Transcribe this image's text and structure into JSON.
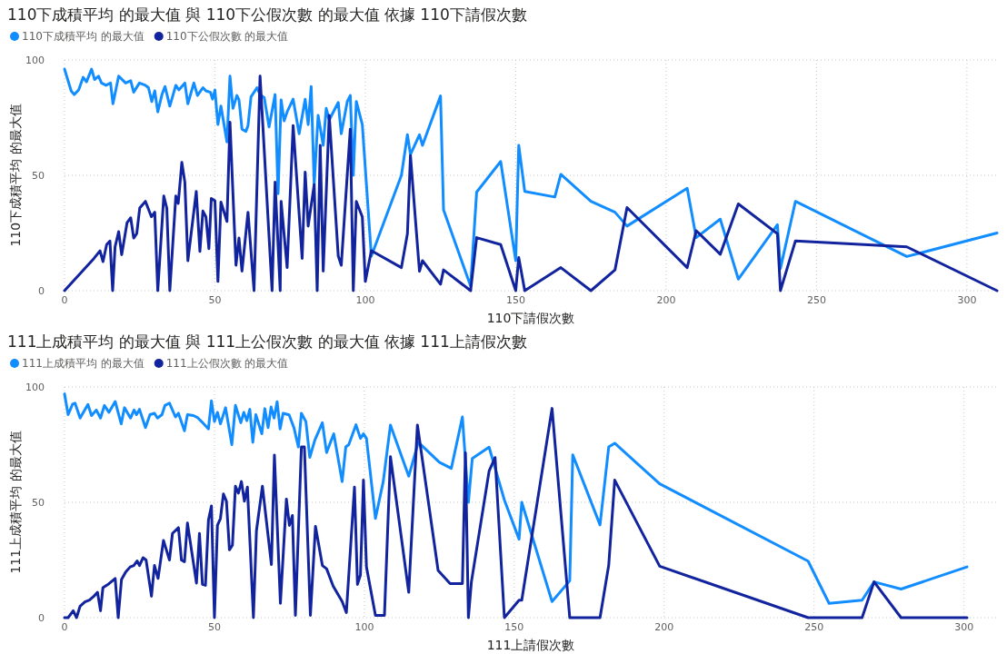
{
  "chart_data": [
    {
      "type": "line",
      "title": "110下成積平均 的最大值 與 110下公假次數 的最大值 依據 110下請假次數",
      "xlabel": "110下請假次數",
      "ylabel": "110下成積平均 的最大值",
      "legend": "top left",
      "grid": true,
      "xlim": [
        0,
        310
      ],
      "xticks": [
        0,
        50,
        100,
        150,
        200,
        250,
        300
      ],
      "ylim": [
        0,
        100
      ],
      "yticks": [
        0,
        50,
        100
      ],
      "series": [
        {
          "name": "110下成積平均 的最大值",
          "color": "#118dff",
          "x": [
            0,
            2.2,
            3.2,
            4.7,
            6.2,
            7.3,
            9,
            10,
            11.3,
            12.3,
            13.8,
            15.3,
            16.1,
            18,
            20.3,
            22,
            23,
            24.9,
            26.9,
            27.9,
            29,
            30,
            31,
            32.4,
            33.4,
            35,
            37,
            38,
            40,
            41,
            43,
            44.2,
            46,
            47,
            48.5,
            49.2,
            50,
            51,
            52,
            54,
            55,
            56,
            57.3,
            58,
            59,
            60.3,
            61,
            62,
            64,
            65,
            66.4,
            68,
            70,
            71,
            72,
            73,
            74,
            76,
            78,
            80,
            81,
            82,
            83,
            84.3,
            86,
            87,
            88,
            91,
            92,
            94,
            95,
            96,
            97,
            99,
            102,
            112,
            114,
            115,
            118,
            119,
            125,
            126,
            135,
            137,
            145,
            150,
            151,
            153,
            163,
            165,
            175,
            183,
            187,
            207,
            210,
            218,
            224,
            237,
            238,
            243,
            280,
            310
          ],
          "values": [
            96,
            86.6,
            85,
            87,
            92.5,
            90.5,
            96,
            91.5,
            93,
            90,
            89,
            90,
            81,
            93,
            90,
            91,
            86,
            90,
            89,
            88,
            82,
            86.6,
            77.5,
            85,
            88.5,
            80,
            89,
            87,
            90,
            81,
            90,
            84.6,
            88,
            86.6,
            86,
            83,
            87,
            72,
            80,
            64.5,
            93,
            79,
            84.6,
            82.7,
            70,
            69,
            71.6,
            84,
            88,
            85,
            83.7,
            71,
            85,
            42,
            82.7,
            73.6,
            77.5,
            83,
            68,
            83,
            72,
            88.5,
            46,
            76,
            63,
            79,
            74,
            81.6,
            68,
            82,
            84.6,
            50,
            82,
            72,
            15,
            50,
            67.6,
            59,
            67.6,
            63,
            84.4,
            35,
            2,
            42.7,
            56,
            13,
            63,
            43,
            40.6,
            50.4,
            38.7,
            34,
            28,
            44.4,
            23,
            31,
            5,
            28.6,
            9.6,
            38.7,
            14.8,
            25
          ]
        },
        {
          "name": "110下公假次數 的最大值",
          "color": "#12239e",
          "x": [
            0,
            9.8,
            11.8,
            12.8,
            14,
            15.1,
            16,
            16.8,
            18,
            19,
            20.8,
            22,
            23,
            24,
            25,
            26.9,
            28.9,
            30,
            31,
            33,
            34,
            35,
            37,
            37.8,
            39,
            40,
            41,
            43.8,
            45,
            46,
            47,
            48,
            48.8,
            50,
            51,
            52,
            54,
            55,
            57,
            58,
            59,
            61,
            63,
            65,
            66,
            69,
            70,
            71.7,
            72,
            74,
            76,
            79,
            80,
            81,
            83,
            84,
            85,
            86,
            88,
            91,
            92,
            95,
            96,
            97,
            99,
            100,
            102,
            112,
            114,
            115,
            118,
            119,
            125,
            126,
            135,
            137,
            145,
            150,
            151,
            153,
            165,
            175,
            183,
            187,
            207,
            210,
            218,
            224,
            237,
            238,
            243,
            280,
            310
          ],
          "values": [
            0,
            14,
            17.3,
            12.6,
            20,
            21.5,
            0,
            19,
            25.6,
            15.6,
            29.5,
            31.6,
            22.8,
            24.7,
            35.8,
            38.7,
            32,
            34,
            0,
            41,
            35.8,
            0,
            41,
            37.8,
            55.6,
            47,
            13,
            43,
            17,
            34.5,
            32,
            18.2,
            40,
            39,
            4,
            38.4,
            30,
            73,
            11,
            22.8,
            8.5,
            34,
            0,
            93,
            70,
            0,
            47,
            0,
            38.7,
            10,
            71.6,
            14,
            51.4,
            28,
            46,
            0,
            63,
            8.5,
            76,
            15,
            11,
            70,
            0,
            38.7,
            32,
            4,
            17.3,
            10,
            24.7,
            58.6,
            8.4,
            13,
            2.8,
            9,
            0,
            23,
            20,
            0,
            14.4,
            0,
            10,
            0,
            9,
            36,
            10,
            26,
            15.8,
            37.6,
            24.7,
            0,
            21.6,
            19,
            0
          ]
        }
      ]
    },
    {
      "type": "line",
      "title": "111上成積平均 的最大值 與 111上公假次數 的最大值 依據 111上請假次數",
      "xlabel": "111上請假次數",
      "ylabel": "111上成積平均 的最大值",
      "legend": "top left",
      "grid": true,
      "xlim": [
        0,
        311
      ],
      "xticks": [
        0,
        50,
        100,
        150,
        200,
        250,
        300
      ],
      "ylim": [
        0,
        100
      ],
      "yticks": [
        0,
        50,
        100
      ],
      "series": [
        {
          "name": "111上成積平均 的最大值",
          "color": "#118dff",
          "x": [
            0,
            1.2,
            2.7,
            3.5,
            5.2,
            7.8,
            9,
            10.6,
            12,
            13.3,
            14.8,
            16.9,
            18.9,
            20,
            22,
            23.2,
            24,
            25,
            27,
            28.5,
            30,
            31,
            32.5,
            33.5,
            35,
            37,
            38,
            40,
            41,
            43,
            44.3,
            45.7,
            48,
            49,
            50,
            51,
            52,
            53.7,
            55.8,
            57,
            58.8,
            59.8,
            60.8,
            61.8,
            62.8,
            63.8,
            65.8,
            66.8,
            67.9,
            68.9,
            69.9,
            70.9,
            71.9,
            72.9,
            74.9,
            76.5,
            78,
            79,
            80.5,
            81.8,
            83.5,
            86,
            87.4,
            89.8,
            92.6,
            93.8,
            94.8,
            97.2,
            98.7,
            99.7,
            100.7,
            103.7,
            106.3,
            108.7,
            114.8,
            118,
            125,
            129,
            132.7,
            134.7,
            136,
            141.6,
            146.7,
            151.6,
            152.5,
            162.6,
            168.5,
            169.5,
            178.6,
            181.5,
            183.5,
            198.5,
            248,
            255,
            266,
            270,
            279,
            301
          ],
          "values": [
            97,
            88,
            92.6,
            93,
            86.5,
            92.4,
            87.6,
            90,
            86.5,
            92,
            89,
            93.7,
            84,
            91,
            86.5,
            90,
            88,
            90.3,
            82.4,
            88,
            88.6,
            86.5,
            88,
            92,
            93,
            87,
            88.6,
            81,
            88,
            87.6,
            86.8,
            85,
            81.8,
            94,
            85,
            89,
            84,
            91,
            75,
            92,
            84.5,
            89,
            85.4,
            90.3,
            76,
            88,
            79.7,
            90.6,
            82.4,
            91.3,
            86.5,
            93.6,
            81.8,
            88.6,
            87.9,
            82.4,
            74,
            88.6,
            85,
            69.5,
            77,
            84.5,
            71.6,
            79.7,
            59,
            74,
            75,
            83.6,
            77.7,
            79.7,
            77.7,
            43,
            59,
            83.5,
            61.3,
            76,
            67.4,
            64.7,
            87,
            50,
            69,
            73.9,
            51,
            34,
            50,
            7,
            16,
            70.6,
            40.2,
            74,
            75.6,
            58,
            24.5,
            6.2,
            7.6,
            15.5,
            12.4,
            22
          ]
        },
        {
          "name": "111上公假次數 的最大值",
          "color": "#12239e",
          "x": [
            0,
            1.2,
            2.9,
            4,
            5.2,
            6.8,
            8.3,
            9.8,
            11,
            12,
            12.8,
            14.8,
            16.9,
            17.9,
            19,
            20.4,
            21.9,
            23.1,
            24.2,
            25,
            26.2,
            27.2,
            29,
            30,
            31.2,
            33,
            35,
            36,
            38,
            39,
            40,
            41,
            44,
            45,
            46,
            47,
            48,
            49,
            50,
            51,
            52,
            53,
            54,
            55,
            56,
            57,
            58,
            59,
            60,
            61,
            63,
            64,
            66,
            69,
            70,
            72,
            74,
            75,
            76,
            77,
            79,
            80,
            82,
            83.7,
            86,
            87.4,
            89.6,
            92.6,
            94,
            96.7,
            97.7,
            98.7,
            99.7,
            100.7,
            103.7,
            106.7,
            108.7,
            114.8,
            117.7,
            124.6,
            128.6,
            132.7,
            133.7,
            134.7,
            135.7,
            141.6,
            143.6,
            146.7,
            151.6,
            152.5,
            162.6,
            168.5,
            178.6,
            181.5,
            183.5,
            198.5,
            248,
            266,
            270,
            279,
            301
          ],
          "values": [
            0,
            0,
            3,
            0,
            5,
            6.8,
            7.6,
            9.3,
            11,
            3,
            13,
            14.7,
            17,
            0,
            16.5,
            19.8,
            22,
            22.6,
            24.6,
            22.6,
            26,
            25,
            9.3,
            22.6,
            17,
            33.5,
            25,
            36.5,
            39,
            25,
            24.2,
            41,
            15,
            36.5,
            14.4,
            14,
            42.3,
            48.4,
            0,
            40,
            43,
            53.6,
            50.5,
            29.4,
            31.4,
            57,
            54,
            59,
            50.5,
            56.6,
            0,
            37.6,
            57,
            23,
            70.5,
            6.2,
            51.4,
            40,
            44.3,
            1,
            74,
            74,
            1,
            39.6,
            22.6,
            21.2,
            13.7,
            7,
            2.2,
            56.6,
            14.4,
            18.5,
            59.6,
            22,
            1,
            1,
            69.8,
            11,
            83.5,
            20.5,
            14.8,
            14.8,
            71.5,
            0,
            15.5,
            63.5,
            69.4,
            0,
            7.6,
            7.6,
            90.7,
            0,
            0,
            22.7,
            59.6,
            22.3,
            0,
            0,
            15.5,
            0,
            0
          ]
        }
      ]
    }
  ]
}
